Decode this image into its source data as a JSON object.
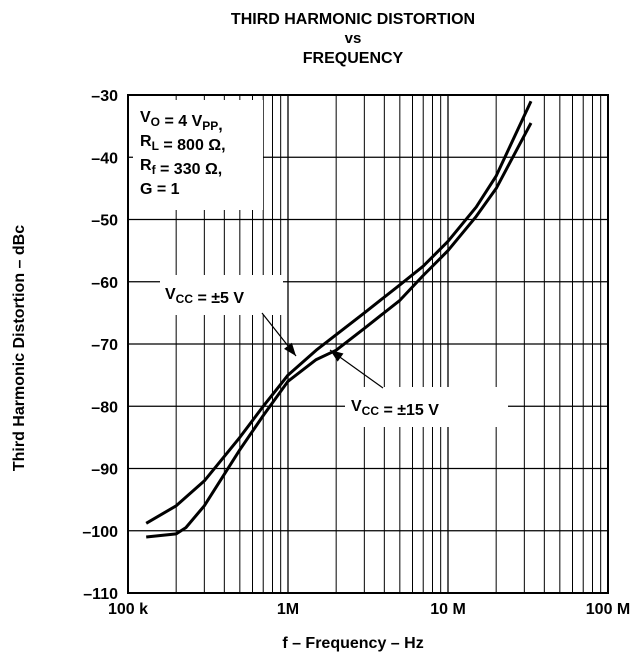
{
  "chart_data": {
    "type": "line",
    "title_lines": [
      "THIRD HARMONIC DISTORTION",
      "vs",
      "FREQUENCY"
    ],
    "xlabel": "f – Frequency – Hz",
    "ylabel": "Third Harmonic Distortion – dBc",
    "x_scale": "log",
    "xlim": [
      100000,
      100000000
    ],
    "ylim": [
      -110,
      -30
    ],
    "grid": true,
    "x_tick_values": [
      100000,
      1000000,
      10000000,
      100000000
    ],
    "x_tick_labels": [
      "100 k",
      "1M",
      "10 M",
      "100 M"
    ],
    "y_ticks": [
      -30,
      -40,
      -50,
      -60,
      -70,
      -80,
      -90,
      -100,
      -110
    ],
    "y_tick_labels": [
      "–30",
      "–40",
      "–50",
      "–60",
      "–70",
      "–80",
      "–90",
      "–100",
      "–110"
    ],
    "conditions": [
      {
        "main": "V",
        "sub": "O",
        "rest": " = 4 V",
        "sub2": "PP",
        "tail": ","
      },
      {
        "main": "R",
        "sub": "L",
        "rest": " = 800 Ω,",
        "sub2": "",
        "tail": ""
      },
      {
        "main": "R",
        "sub": "f",
        "rest": " = 330 Ω,",
        "sub2": "",
        "tail": ""
      },
      {
        "main": "G = 1",
        "sub": "",
        "rest": "",
        "sub2": "",
        "tail": ""
      }
    ],
    "series": [
      {
        "name": "VCC = ±5 V",
        "label": {
          "main": "V",
          "sub": "CC",
          "rest": " = ±5 V"
        },
        "x": [
          130000,
          200000,
          300000,
          500000,
          700000,
          1000000,
          1500000,
          2000000,
          3000000,
          5000000,
          7000000,
          10000000,
          15000000,
          20000000,
          33000000
        ],
        "y": [
          -98.8,
          -96,
          -92,
          -85,
          -80,
          -75,
          -71,
          -68.5,
          -65,
          -60.5,
          -57.5,
          -53.5,
          -48,
          -43,
          -31
        ]
      },
      {
        "name": "VCC = ±15 V",
        "label": {
          "main": "V",
          "sub": "CC",
          "rest": " = ±15 V"
        },
        "x": [
          130000,
          200000,
          230000,
          300000,
          500000,
          700000,
          1000000,
          1500000,
          2000000,
          3000000,
          5000000,
          7000000,
          10000000,
          15000000,
          20000000,
          33000000
        ],
        "y": [
          -101,
          -100.5,
          -99.5,
          -96,
          -87,
          -81.5,
          -76,
          -72.5,
          -71,
          -67.5,
          -63,
          -59,
          -55,
          -49.5,
          -45,
          -34.5
        ]
      }
    ]
  }
}
